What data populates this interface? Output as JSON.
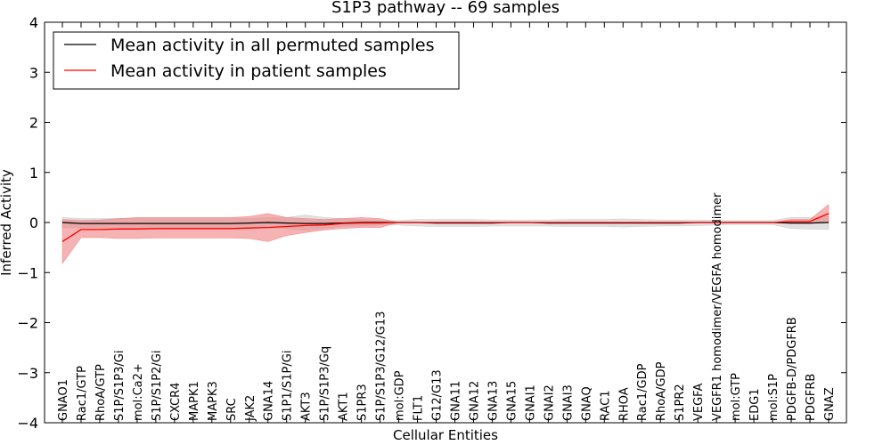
{
  "chart_data": {
    "type": "line",
    "title": "S1P3 pathway -- 69 samples",
    "xlabel": "Cellular Entities",
    "ylabel": "Inferred Activity",
    "ylim": [
      -4,
      4
    ],
    "yticks": [
      -4,
      -3,
      -2,
      -1,
      0,
      1,
      2,
      3,
      4
    ],
    "ytick_labels": [
      "−4",
      "−3",
      "−2",
      "−1",
      "0",
      "1",
      "2",
      "3",
      "4"
    ],
    "grid": false,
    "legend_position": "top-left",
    "categories": [
      "GNAO1",
      "Rac1/GTP",
      "RhoA/GTP",
      "S1P/S1P3/Gi",
      "mol:Ca2+",
      "S1P/S1P2/Gi",
      "CXCR4",
      "MAPK1",
      "MAPK3",
      "SRC",
      "JAK2",
      "GNA14",
      "S1P1/S1P/Gi",
      "AKT3",
      "S1P/S1P3/Gq",
      "AKT1",
      "S1PR3",
      "S1P/S1P3/G12/G13",
      "mol:GDP",
      "FLT1",
      "G12/G13",
      "GNA11",
      "GNA12",
      "GNA13",
      "GNA15",
      "GNAI1",
      "GNAI2",
      "GNAI3",
      "GNAQ",
      "RAC1",
      "RHOA",
      "Rac1/GDP",
      "RhoA/GDP",
      "S1PR2",
      "VEGFA",
      "VEGFR1 homodimer/VEGFA homodimer",
      "mol:GTP",
      "EDG1",
      "mol:S1P",
      "PDGFB-D/PDGFRB",
      "PDGFRB",
      "GNAZ"
    ],
    "series": [
      {
        "name": "Mean activity in all permuted samples",
        "color": "#000000",
        "band_color": "#c8c8c8",
        "values": [
          0.0,
          -0.02,
          -0.02,
          -0.02,
          -0.02,
          -0.02,
          -0.02,
          -0.02,
          -0.02,
          -0.02,
          -0.01,
          0.0,
          -0.01,
          -0.02,
          -0.02,
          -0.01,
          0.0,
          0.0,
          0.0,
          0.0,
          -0.01,
          -0.01,
          -0.01,
          -0.01,
          0.0,
          0.0,
          -0.01,
          -0.01,
          -0.01,
          -0.01,
          -0.01,
          -0.01,
          -0.01,
          -0.01,
          0.0,
          0.0,
          0.0,
          0.0,
          0.0,
          -0.01,
          -0.01,
          0.0
        ],
        "lower": [
          -0.1,
          -0.1,
          -0.1,
          -0.11,
          -0.11,
          -0.11,
          -0.11,
          -0.11,
          -0.11,
          -0.11,
          -0.1,
          -0.1,
          -0.12,
          -0.16,
          -0.12,
          -0.08,
          -0.07,
          -0.05,
          -0.05,
          -0.07,
          -0.08,
          -0.08,
          -0.08,
          -0.07,
          -0.07,
          -0.07,
          -0.07,
          -0.08,
          -0.08,
          -0.08,
          -0.09,
          -0.08,
          -0.07,
          -0.07,
          -0.06,
          -0.05,
          -0.04,
          -0.04,
          -0.04,
          -0.12,
          -0.13,
          -0.14
        ],
        "upper": [
          0.1,
          0.08,
          0.08,
          0.08,
          0.08,
          0.08,
          0.08,
          0.08,
          0.08,
          0.08,
          0.08,
          0.1,
          0.1,
          0.15,
          0.1,
          0.08,
          0.06,
          0.04,
          0.04,
          0.06,
          0.06,
          0.06,
          0.06,
          0.05,
          0.05,
          0.05,
          0.05,
          0.06,
          0.06,
          0.06,
          0.07,
          0.06,
          0.05,
          0.05,
          0.05,
          0.04,
          0.04,
          0.04,
          0.04,
          0.1,
          0.1,
          0.12
        ]
      },
      {
        "name": "Mean activity in patient samples",
        "color": "#ff0000",
        "band_color": "#f08080",
        "values": [
          -0.38,
          -0.14,
          -0.14,
          -0.13,
          -0.13,
          -0.12,
          -0.12,
          -0.12,
          -0.12,
          -0.12,
          -0.11,
          -0.1,
          -0.08,
          -0.06,
          -0.05,
          -0.02,
          -0.01,
          -0.01,
          0.0,
          0.0,
          0.0,
          0.0,
          0.0,
          0.0,
          0.0,
          0.0,
          0.0,
          0.0,
          0.0,
          0.0,
          0.0,
          0.0,
          0.0,
          0.0,
          0.0,
          0.0,
          0.0,
          0.0,
          0.0,
          0.02,
          0.02,
          0.18
        ],
        "lower": [
          -0.82,
          -0.3,
          -0.3,
          -0.32,
          -0.32,
          -0.31,
          -0.31,
          -0.31,
          -0.31,
          -0.31,
          -0.32,
          -0.38,
          -0.26,
          -0.2,
          -0.15,
          -0.12,
          -0.1,
          -0.1,
          0.0,
          0.0,
          0.0,
          0.0,
          0.0,
          0.0,
          0.0,
          0.0,
          0.0,
          0.0,
          0.0,
          0.0,
          0.0,
          0.0,
          0.0,
          0.0,
          0.0,
          0.0,
          0.0,
          0.0,
          0.0,
          -0.02,
          -0.02,
          0.0
        ],
        "upper": [
          0.06,
          0.04,
          0.05,
          0.08,
          0.1,
          0.1,
          0.1,
          0.1,
          0.1,
          0.1,
          0.12,
          0.18,
          0.1,
          0.08,
          0.06,
          0.08,
          0.1,
          0.08,
          0.0,
          0.0,
          0.0,
          0.0,
          0.0,
          0.0,
          0.0,
          0.0,
          0.0,
          0.0,
          0.0,
          0.0,
          0.0,
          0.0,
          0.0,
          0.0,
          0.0,
          0.0,
          0.0,
          0.0,
          0.0,
          0.06,
          0.06,
          0.36
        ]
      }
    ]
  }
}
